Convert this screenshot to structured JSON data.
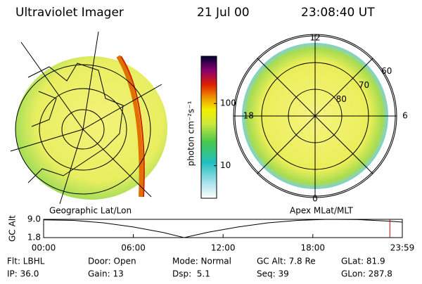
{
  "header": {
    "title": "Ultraviolet Imager",
    "date": "21 Jul 00",
    "time": "23:08:40 UT"
  },
  "left_map": {
    "label": "Geographic Lat/Lon"
  },
  "right_map": {
    "label": "Apex MLat/MLT",
    "mlt_ticks": [
      12,
      6,
      0,
      18
    ],
    "mlat_ticks": [
      80,
      70,
      60
    ]
  },
  "colorbar": {
    "label": "photon cm⁻²s⁻¹",
    "log": true,
    "lim": [
      3,
      575
    ],
    "ticks": [
      100,
      10
    ]
  },
  "orbit_plot": {
    "ylabel": "GC Alt",
    "ylim": [
      1.8,
      9.0
    ],
    "yticks": [
      {
        "value": 9.0,
        "label": "9.0"
      },
      {
        "value": 1.8,
        "label": "1.8"
      }
    ],
    "xlim": [
      0,
      23.983
    ],
    "xticks": [
      {
        "value": 0,
        "label": "00:00"
      },
      {
        "value": 6,
        "label": "06:00"
      },
      {
        "value": 12,
        "label": "12:00"
      },
      {
        "value": 18,
        "label": "18:00"
      },
      {
        "value": 23.983,
        "label": "23:59"
      }
    ],
    "x": [
      0,
      2,
      4,
      6,
      8,
      9.4,
      11,
      13,
      15,
      17,
      19,
      21,
      23,
      24
    ],
    "values": [
      8.8,
      8.6,
      7.6,
      6.0,
      3.8,
      1.8,
      3.9,
      6.0,
      7.6,
      8.6,
      9.0,
      8.9,
      8.3,
      7.9
    ],
    "color": "#000000",
    "marker_time": 23.15,
    "marker_color": "#cc0000"
  },
  "info": [
    [
      "Flt: LBHL",
      "IP: 36.0"
    ],
    [
      "Door: Open",
      "Gain: 13"
    ],
    [
      "Mode: Normal",
      "Dsp:  5.1"
    ],
    [
      "GC Alt: 7.8 Re",
      "Seq: 39"
    ],
    [
      "GLat: 81.9",
      "GLon: 287.8"
    ]
  ]
}
